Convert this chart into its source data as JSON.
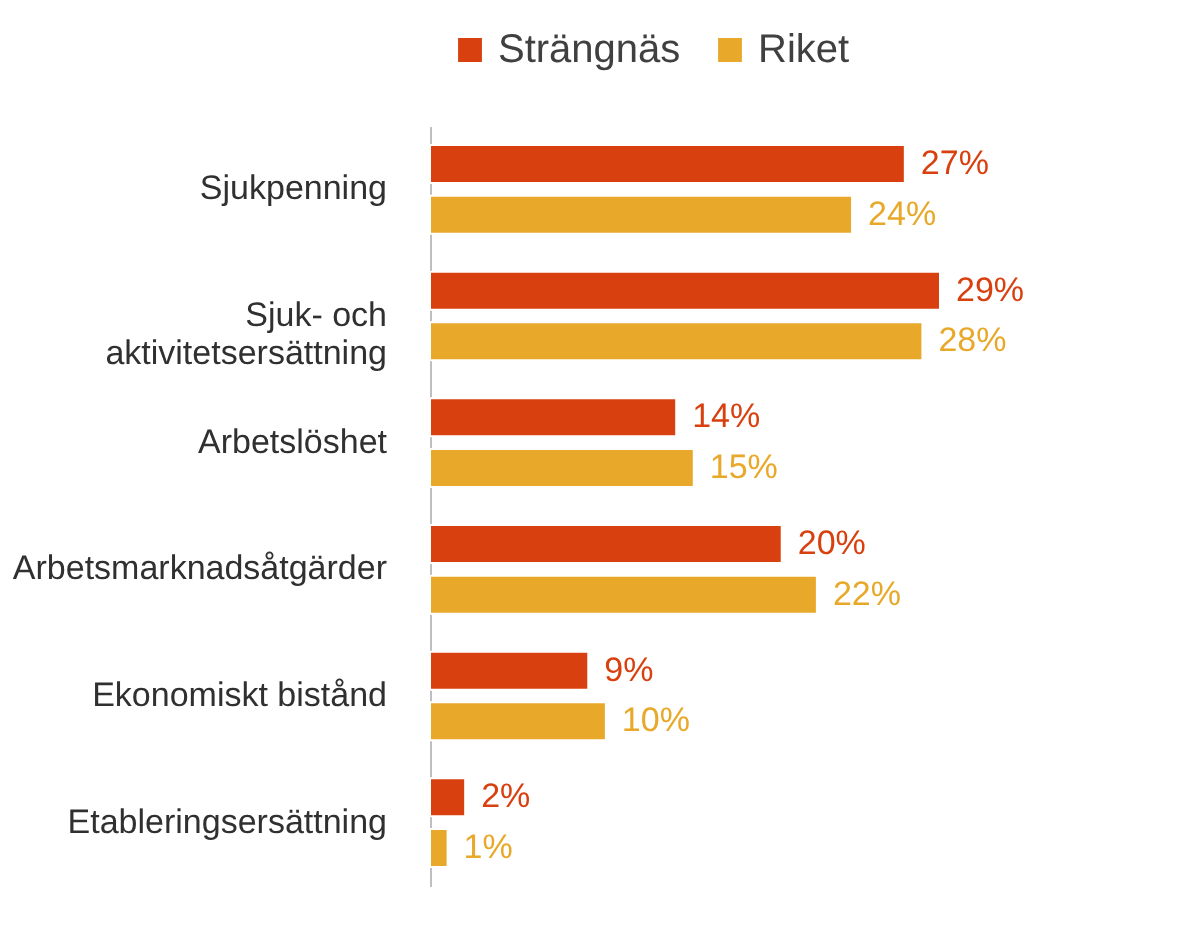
{
  "chart_data": {
    "type": "bar",
    "orientation": "horizontal",
    "legend": "top",
    "categories": [
      "Sjukpenning",
      "Sjuk- och aktivitetsersättning",
      "Arbetslöshet",
      "Arbetsmarknadsåtgärder",
      "Ekonomiskt bistånd",
      "Etableringsersättning"
    ],
    "series": [
      {
        "name": "Strängnäs",
        "color": "#d9400f",
        "values": [
          27,
          29,
          14,
          20,
          9,
          2
        ],
        "value_labels": [
          "27%",
          "29%",
          "14%",
          "20%",
          "9%",
          "2%"
        ]
      },
      {
        "name": "Riket",
        "color": "#e8a92a",
        "values": [
          24,
          28,
          15,
          22,
          10,
          1
        ],
        "value_labels": [
          "24%",
          "28%",
          "15%",
          "22%",
          "10%",
          "1%"
        ]
      }
    ]
  }
}
